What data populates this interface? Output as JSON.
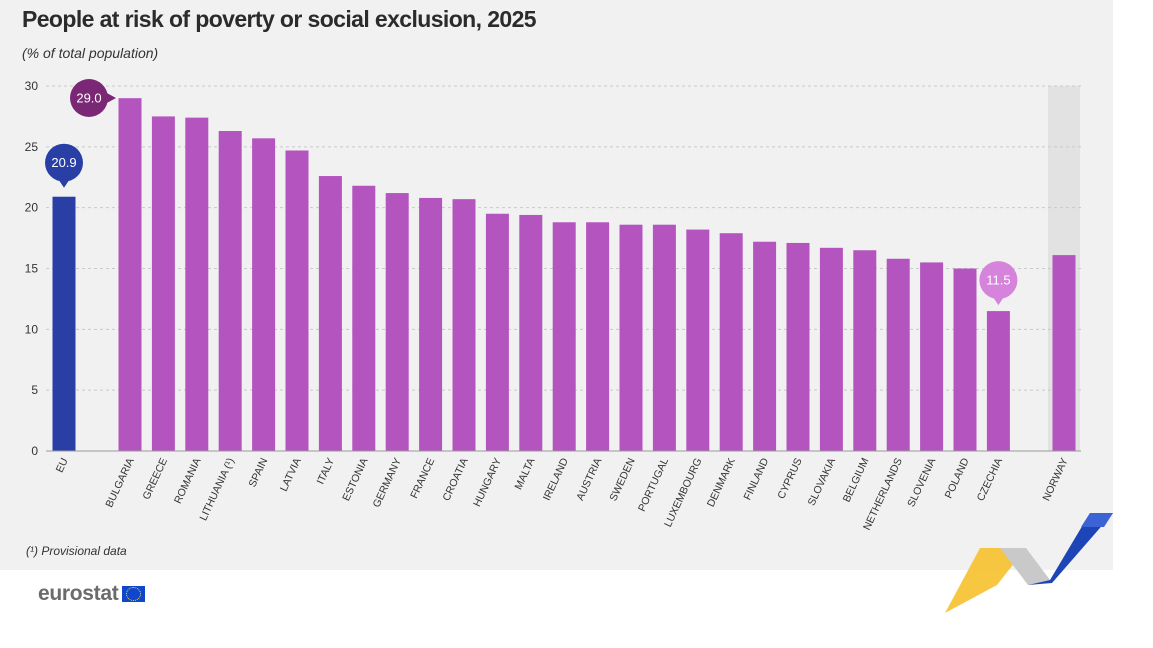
{
  "header": {
    "title": "People at risk of poverty or social exclusion, 2025",
    "subtitle": "(% of total population)"
  },
  "footnote": "(¹) Provisional data",
  "logo": {
    "text": "eurostat",
    "flag_icon": "eu-flag-icon"
  },
  "colors": {
    "eu_bar": "#2a3fa6",
    "country_bar": "#b454bf",
    "max_callout": "#7a2875",
    "min_callout": "#d683dc",
    "non_eu_band": "#e2e2e2",
    "gridline": "#c9c9c9"
  },
  "chart_data": {
    "type": "bar",
    "title": "People at risk of poverty or social exclusion, 2025",
    "subtitle": "(% of total population)",
    "ylim": [
      0,
      30
    ],
    "yticks": [
      0,
      5,
      10,
      15,
      20,
      25,
      30
    ],
    "grid": true,
    "categories": [
      "EU",
      "BULGARIA",
      "GREECE",
      "ROMANIA",
      "LITHUANIA (¹)",
      "SPAIN",
      "LATVIA",
      "ITALY",
      "ESTONIA",
      "GERMANY",
      "FRANCE",
      "CROATIA",
      "HUNGARY",
      "MALTA",
      "IRELAND",
      "AUSTRIA",
      "SWEDEN",
      "PORTUGAL",
      "LUXEMBOURG",
      "DENMARK",
      "FINLAND",
      "CYPRUS",
      "SLOVAKIA",
      "BELGIUM",
      "NETHERLANDS",
      "SLOVENIA",
      "POLAND",
      "CZECHIA",
      "NORWAY"
    ],
    "values": [
      20.9,
      29.0,
      27.5,
      27.4,
      26.3,
      25.7,
      24.7,
      22.6,
      21.8,
      21.2,
      20.8,
      20.7,
      19.5,
      19.4,
      18.8,
      18.8,
      18.6,
      18.6,
      18.2,
      17.9,
      17.2,
      17.1,
      16.7,
      16.5,
      15.8,
      15.5,
      15.0,
      11.5,
      16.1
    ],
    "callouts": [
      {
        "category": "EU",
        "label": "20.9"
      },
      {
        "category": "BULGARIA",
        "label": "29.0"
      },
      {
        "category": "CZECHIA",
        "label": "11.5"
      }
    ]
  }
}
